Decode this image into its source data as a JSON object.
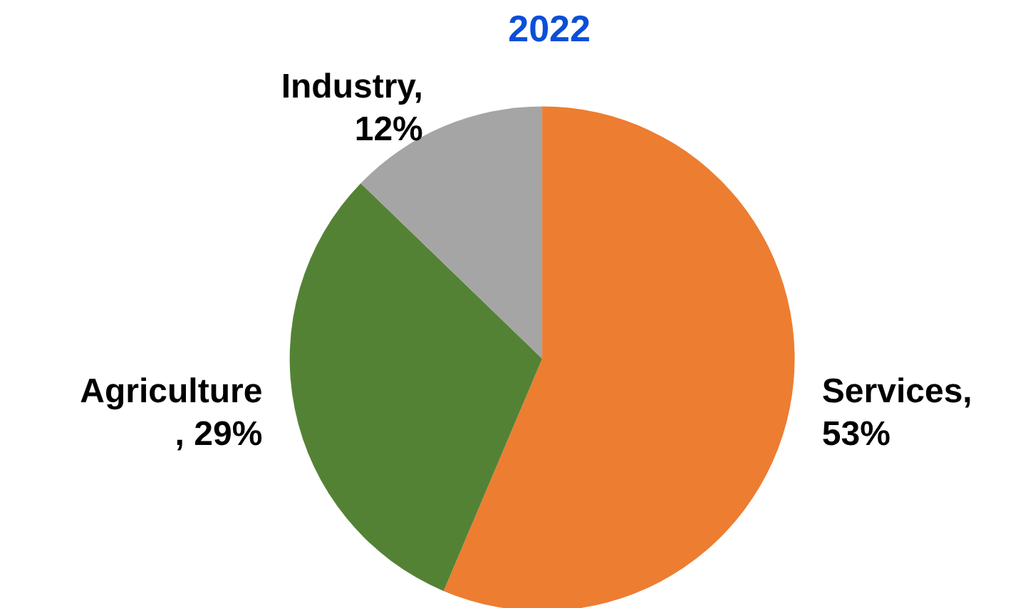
{
  "chart_data": {
    "type": "pie",
    "title": "2022",
    "categories": [
      "Services",
      "Agriculture",
      "Industry"
    ],
    "values": [
      53,
      29,
      12
    ],
    "value_labels": [
      ", 53%",
      ", 29%",
      ", 12%"
    ],
    "colors": [
      "#ed7d31",
      "#548235",
      "#a5a5a5"
    ],
    "legend": false
  }
}
